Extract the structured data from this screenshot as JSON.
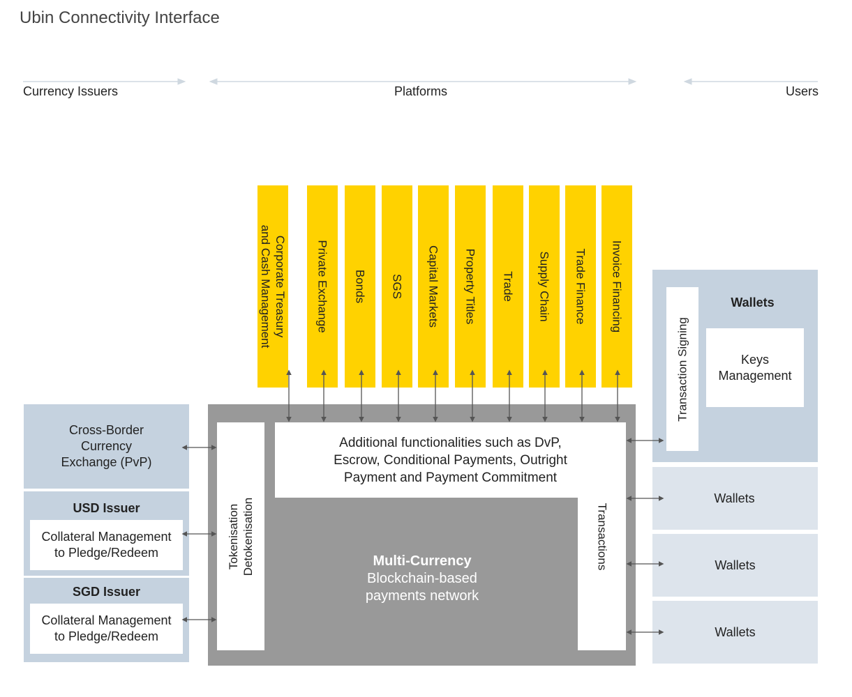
{
  "title": "Ubin Connectivity Interface",
  "headers": {
    "currency_issuers": "Currency Issuers",
    "platforms": "Platforms",
    "users": "Users"
  },
  "platforms": [
    "Corporate Treasury\nand Cash Management",
    "Private Exchange",
    "Bonds",
    "SGS",
    "Capital Markets",
    "Property Titles",
    "Trade",
    "Supply Chain",
    "Trade Finance",
    "Invoice Financing"
  ],
  "issuers": {
    "cross_border": "Cross-Border\nCurrency\nExchange (PvP)",
    "usd_title": "USD Issuer",
    "usd_body": "Collateral Management\nto Pledge/Redeem",
    "sgd_title": "SGD Issuer",
    "sgd_body": "Collateral Management\nto Pledge/Redeem"
  },
  "network": {
    "tokenisation": "Tokenisation\nDetokenisation",
    "additional": "Additional functionalities such as DvP,\nEscrow, Conditional Payments, Outright\nPayment and Payment Commitment",
    "transactions": "Transactions",
    "core_title": "Multi-Currency",
    "core_body": "Blockchain-based\npayments network"
  },
  "users": {
    "wallets_main": "Wallets",
    "transaction_signing": "Transaction Signing",
    "keys_management": "Keys\nManagement",
    "wallet_1": "Wallets",
    "wallet_2": "Wallets",
    "wallet_3": "Wallets"
  },
  "colors": {
    "platform_yellow": "#ffd200",
    "issuer_blue": "#c5d2df",
    "wallet_light_blue": "#dde4ec",
    "network_grey": "#999999",
    "arrow_grey": "#555555"
  }
}
